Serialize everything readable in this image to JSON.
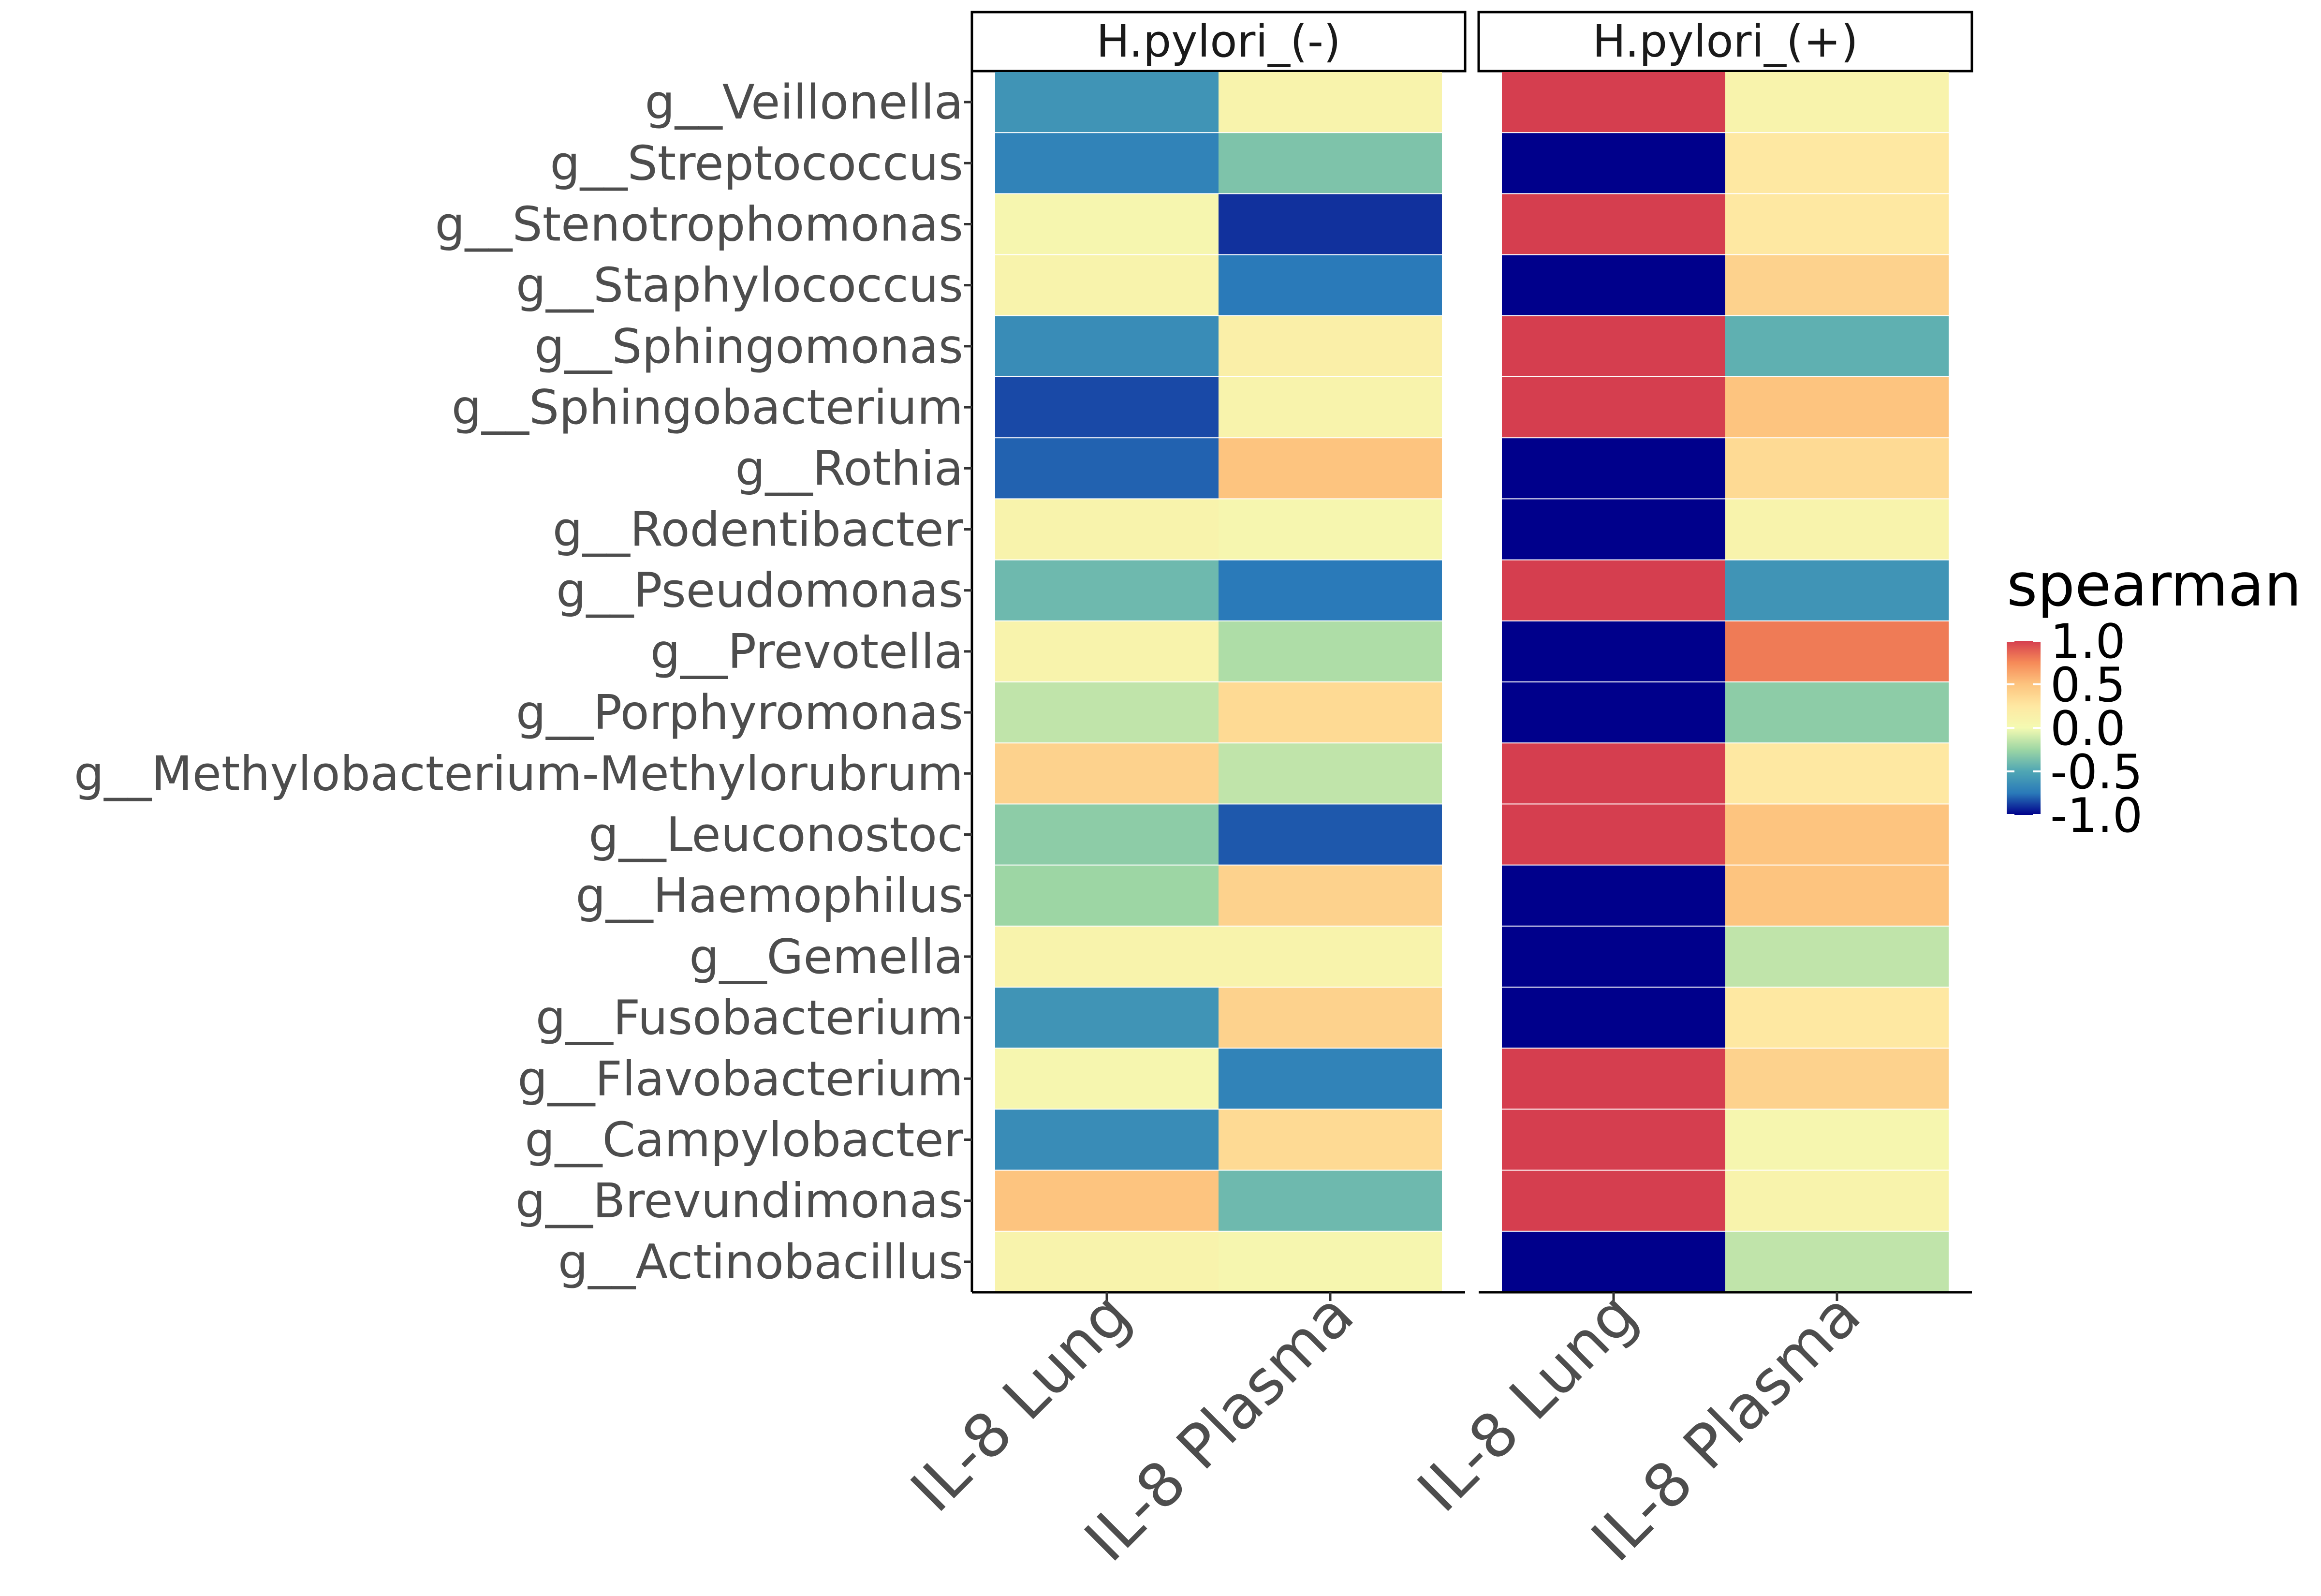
{
  "chart_data": {
    "type": "heatmap",
    "panels": [
      "H.pylori_(-)",
      "H.pylori_(+)"
    ],
    "x_categories": [
      "IL-8 Lung",
      "IL-8 Plasma"
    ],
    "y_categories": [
      "g__Veillonella",
      "g__Streptococcus",
      "g__Stenotrophomonas",
      "g__Staphylococcus",
      "g__Sphingomonas",
      "g__Sphingobacterium",
      "g__Rothia",
      "g__Rodentibacter",
      "g__Pseudomonas",
      "g__Prevotella",
      "g__Porphyromonas",
      "g__Methylobacterium-Methylorubrum",
      "g__Leuconostoc",
      "g__Haemophilus",
      "g__Gemella",
      "g__Fusobacterium",
      "g__Flavobacterium",
      "g__Campylobacter",
      "g__Brevundimonas",
      "g__Actinobacillus"
    ],
    "values": {
      "H.pylori_(-)": [
        [
          -0.6,
          0.1
        ],
        [
          -0.7,
          -0.35
        ],
        [
          0.05,
          -0.9
        ],
        [
          0.1,
          -0.75
        ],
        [
          -0.65,
          0.15
        ],
        [
          -0.85,
          0.1
        ],
        [
          -0.8,
          0.5
        ],
        [
          0.1,
          0.05
        ],
        [
          -0.4,
          -0.75
        ],
        [
          0.1,
          -0.2
        ],
        [
          -0.15,
          0.35
        ],
        [
          0.4,
          -0.15
        ],
        [
          -0.3,
          -0.82
        ],
        [
          -0.25,
          0.4
        ],
        [
          0.1,
          0.1
        ],
        [
          -0.6,
          0.4
        ],
        [
          0.05,
          -0.7
        ],
        [
          -0.65,
          0.35
        ],
        [
          0.5,
          -0.4
        ],
        [
          0.1,
          0.05
        ]
      ],
      "H.pylori_(+)": [
        [
          1.0,
          0.1
        ],
        [
          -1.0,
          0.25
        ],
        [
          1.0,
          0.25
        ],
        [
          -1.0,
          0.4
        ],
        [
          1.0,
          -0.45
        ],
        [
          1.0,
          0.5
        ],
        [
          -1.0,
          0.35
        ],
        [
          -1.0,
          0.1
        ],
        [
          1.0,
          -0.6
        ],
        [
          -1.0,
          0.8
        ],
        [
          -1.0,
          -0.3
        ],
        [
          1.0,
          0.25
        ],
        [
          1.0,
          0.5
        ],
        [
          -1.0,
          0.5
        ],
        [
          -1.0,
          -0.15
        ],
        [
          -1.0,
          0.25
        ],
        [
          1.0,
          0.4
        ],
        [
          1.0,
          0.05
        ],
        [
          1.0,
          0.1
        ],
        [
          -1.0,
          -0.15
        ]
      ]
    },
    "legend": {
      "title": "spearman",
      "ticks": [
        "1.0",
        "0.5",
        "0.0",
        "-0.5",
        "-1.0"
      ],
      "tick_values": [
        1.0,
        0.5,
        0.0,
        -0.5,
        -1.0
      ],
      "range": [
        -1.0,
        1.0
      ],
      "placement": "right"
    },
    "colormap": "Spectral (blue low, red high)",
    "color_stops": [
      {
        "v": -1.0,
        "c": "#00008b"
      },
      {
        "v": -0.75,
        "c": "#2a7ab9"
      },
      {
        "v": -0.5,
        "c": "#4fa6b4"
      },
      {
        "v": -0.25,
        "c": "#9dd6a4"
      },
      {
        "v": 0.0,
        "c": "#f4fab2"
      },
      {
        "v": 0.25,
        "c": "#fee8a2"
      },
      {
        "v": 0.5,
        "c": "#fdc47f"
      },
      {
        "v": 0.75,
        "c": "#f68a58"
      },
      {
        "v": 1.0,
        "c": "#d53e4f"
      }
    ]
  }
}
